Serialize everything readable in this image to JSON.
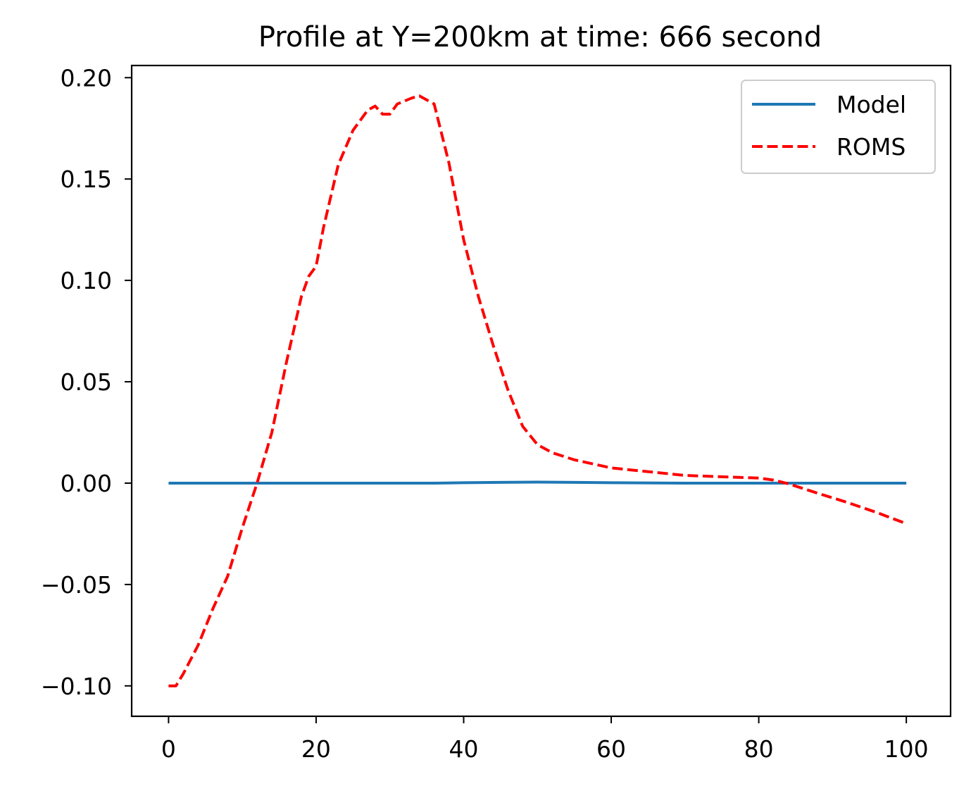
{
  "chart_data": {
    "type": "line",
    "title": "Profile at Y=200km at time: 666 second",
    "xlabel": "",
    "ylabel": "",
    "xlim": [
      -5,
      106
    ],
    "ylim": [
      -0.115,
      0.206
    ],
    "x_ticks": [
      0,
      20,
      40,
      60,
      80,
      100
    ],
    "x_tick_labels": [
      "0",
      "20",
      "40",
      "60",
      "80",
      "100"
    ],
    "y_ticks": [
      -0.1,
      -0.05,
      0.0,
      0.05,
      0.1,
      0.15,
      0.2
    ],
    "y_tick_labels": [
      "−0.10",
      "−0.05",
      "0.00",
      "0.05",
      "0.10",
      "0.15",
      "0.20"
    ],
    "grid": false,
    "legend_position": "top-right",
    "series": [
      {
        "name": "Model",
        "color": "#1f77b4",
        "style": "solid",
        "x": [
          0,
          10,
          20,
          30,
          36,
          40,
          45,
          50,
          55,
          60,
          70,
          80,
          90,
          100
        ],
        "y": [
          0.0,
          0.0,
          0.0,
          0.0,
          0.0,
          0.0002,
          0.0004,
          0.0005,
          0.0004,
          0.0002,
          0.0,
          0.0,
          0.0,
          0.0
        ]
      },
      {
        "name": "ROMS",
        "color": "#ff0000",
        "style": "dashed",
        "x": [
          0,
          1,
          2,
          4,
          6,
          8,
          10,
          12,
          14,
          16,
          18,
          19,
          20,
          21,
          23,
          25,
          27,
          28,
          29,
          30,
          31,
          33,
          34,
          36,
          38,
          40,
          42,
          44,
          46,
          48,
          50,
          52,
          55,
          60,
          70,
          80,
          82,
          84,
          88,
          92,
          96,
          100
        ],
        "y": [
          -0.1,
          -0.1,
          -0.094,
          -0.08,
          -0.062,
          -0.046,
          -0.022,
          0.0,
          0.025,
          0.06,
          0.092,
          0.102,
          0.107,
          0.126,
          0.157,
          0.174,
          0.184,
          0.186,
          0.182,
          0.182,
          0.187,
          0.19,
          0.191,
          0.187,
          0.158,
          0.12,
          0.092,
          0.068,
          0.046,
          0.028,
          0.019,
          0.015,
          0.0115,
          0.0075,
          0.0038,
          0.0025,
          0.0015,
          -0.0003,
          -0.005,
          -0.0095,
          -0.0145,
          -0.02
        ]
      }
    ]
  }
}
